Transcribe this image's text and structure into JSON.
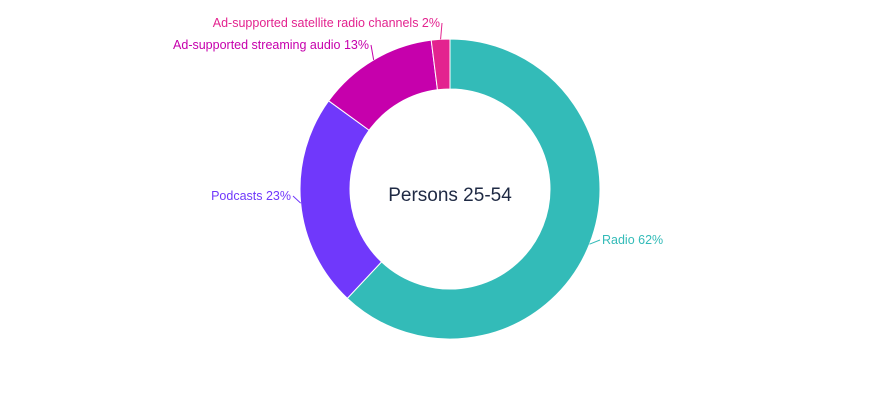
{
  "chart_data": {
    "type": "pie",
    "variant": "donut",
    "center_label": "Persons 25-54",
    "slices": [
      {
        "label": "Radio",
        "value": 62,
        "value_text": "62%",
        "color": "#33bbb8"
      },
      {
        "label": "Podcasts",
        "value": 23,
        "value_text": "23%",
        "color": "#7038fb"
      },
      {
        "label": "Ad-supported streaming audio",
        "value": 13,
        "value_text": "13%",
        "color": "#c600ac"
      },
      {
        "label": "Ad-supported satellite radio channels",
        "value": 2,
        "value_text": "2%",
        "color": "#e3238f"
      }
    ],
    "legend": "none",
    "labels": "outside"
  }
}
